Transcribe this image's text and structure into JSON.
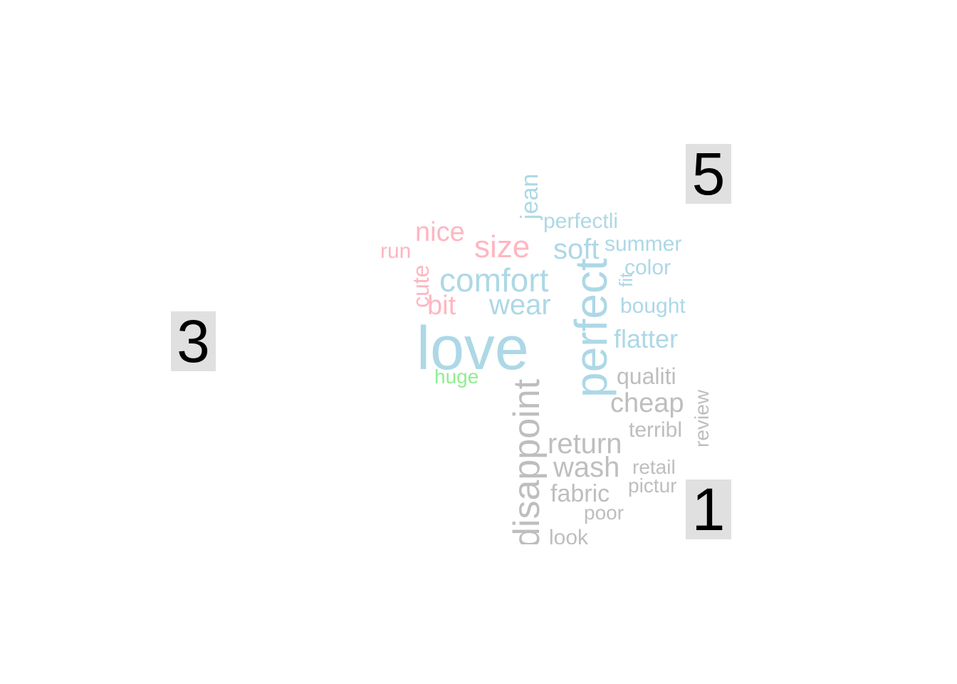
{
  "labels": {
    "group_5": "5",
    "group_3": "3",
    "group_1": "1"
  },
  "colors": {
    "group_5": "#add8e6",
    "group_3": "#ffb6c1",
    "group_1": "#bebebe",
    "huge": "#90ee90"
  },
  "words": [
    {
      "text": "love",
      "group": "5"
    },
    {
      "text": "perfect",
      "group": "5"
    },
    {
      "text": "comfort",
      "group": "5"
    },
    {
      "text": "wear",
      "group": "5"
    },
    {
      "text": "soft",
      "group": "5"
    },
    {
      "text": "jean",
      "group": "5"
    },
    {
      "text": "perfectli",
      "group": "5"
    },
    {
      "text": "summer",
      "group": "5"
    },
    {
      "text": "color",
      "group": "5"
    },
    {
      "text": "fit",
      "group": "5"
    },
    {
      "text": "bought",
      "group": "5"
    },
    {
      "text": "flatter",
      "group": "5"
    },
    {
      "text": "nice",
      "group": "3"
    },
    {
      "text": "size",
      "group": "3"
    },
    {
      "text": "run",
      "group": "3"
    },
    {
      "text": "cute",
      "group": "3"
    },
    {
      "text": "bit",
      "group": "3"
    },
    {
      "text": "huge",
      "group": "other"
    },
    {
      "text": "disappoint",
      "group": "1"
    },
    {
      "text": "qualiti",
      "group": "1"
    },
    {
      "text": "cheap",
      "group": "1"
    },
    {
      "text": "return",
      "group": "1"
    },
    {
      "text": "terribl",
      "group": "1"
    },
    {
      "text": "review",
      "group": "1"
    },
    {
      "text": "wash",
      "group": "1"
    },
    {
      "text": "retail",
      "group": "1"
    },
    {
      "text": "pictur",
      "group": "1"
    },
    {
      "text": "fabric",
      "group": "1"
    },
    {
      "text": "poor",
      "group": "1"
    },
    {
      "text": "look",
      "group": "1"
    }
  ]
}
